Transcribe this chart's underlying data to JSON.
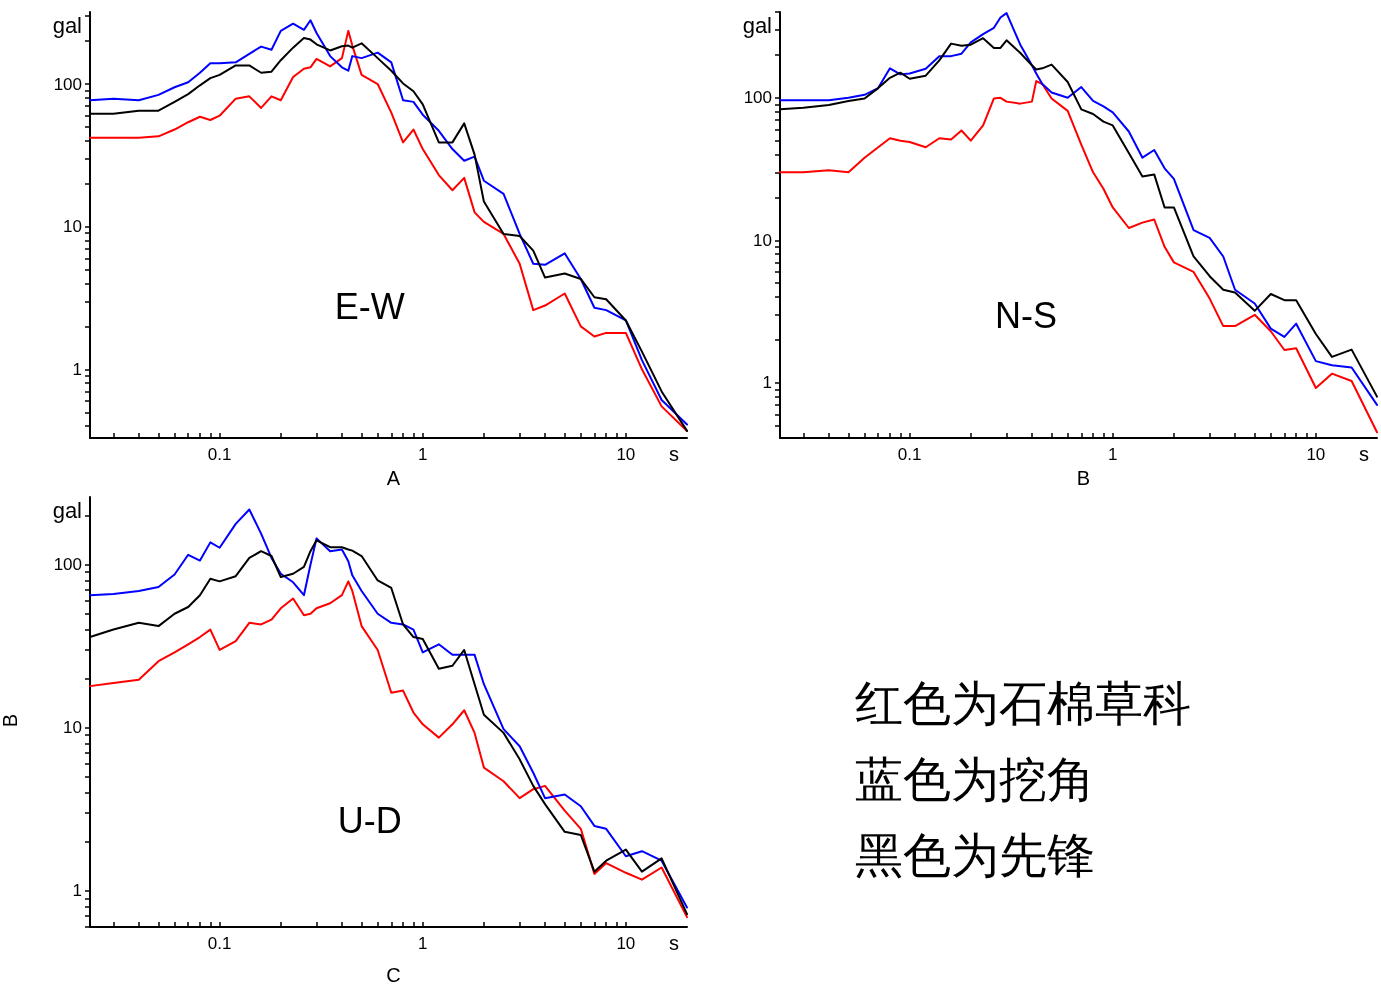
{
  "chart_data": [
    {
      "type": "line",
      "title": "A",
      "xlabel": "s",
      "ylabel": "gal",
      "annotations": [
        "E-W"
      ],
      "log": "xy",
      "grid": false,
      "marker": "none",
      "line_style": "solid",
      "xlim": [
        0.023,
        20
      ],
      "ylim": [
        0.33,
        320
      ],
      "xticks": [
        {
          "value": 0.03,
          "label": null
        },
        {
          "value": 0.04,
          "label": null
        },
        {
          "value": 0.05,
          "label": null
        },
        {
          "value": 0.06,
          "label": null
        },
        {
          "value": 0.07,
          "label": null
        },
        {
          "value": 0.08,
          "label": null
        },
        {
          "value": 0.09,
          "label": null
        },
        0.1,
        {
          "value": 0.2,
          "label": null
        },
        {
          "value": 0.3,
          "label": null
        },
        {
          "value": 0.4,
          "label": null
        },
        {
          "value": 0.5,
          "label": null
        },
        {
          "value": 0.6,
          "label": null
        },
        {
          "value": 0.7,
          "label": null
        },
        {
          "value": 0.8,
          "label": null
        },
        {
          "value": 0.9,
          "label": null
        },
        1,
        {
          "value": 2,
          "label": null
        },
        {
          "value": 3,
          "label": null
        },
        {
          "value": 4,
          "label": null
        },
        {
          "value": 5,
          "label": null
        },
        {
          "value": 6,
          "label": null
        },
        {
          "value": 7,
          "label": null
        },
        {
          "value": 8,
          "label": null
        },
        {
          "value": 9,
          "label": null
        },
        10
      ],
      "yticks": [
        {
          "value": 0.4,
          "label": null
        },
        {
          "value": 0.5,
          "label": null
        },
        {
          "value": 0.6,
          "label": null
        },
        {
          "value": 0.7,
          "label": null
        },
        {
          "value": 0.8,
          "label": null
        },
        {
          "value": 0.9,
          "label": null
        },
        1,
        {
          "value": 2,
          "label": null
        },
        {
          "value": 3,
          "label": null
        },
        {
          "value": 4,
          "label": null
        },
        {
          "value": 5,
          "label": null
        },
        {
          "value": 6,
          "label": null
        },
        {
          "value": 7,
          "label": null
        },
        {
          "value": 8,
          "label": null
        },
        {
          "value": 9,
          "label": null
        },
        10,
        {
          "value": 20,
          "label": null
        },
        {
          "value": 30,
          "label": null
        },
        {
          "value": 40,
          "label": null
        },
        {
          "value": 50,
          "label": null
        },
        {
          "value": 60,
          "label": null
        },
        {
          "value": 70,
          "label": null
        },
        {
          "value": 80,
          "label": null
        },
        {
          "value": 90,
          "label": null
        },
        100,
        {
          "value": 200,
          "label": null
        },
        {
          "value": 300,
          "label": null
        }
      ],
      "x": [
        0.023,
        0.03,
        0.04,
        0.05,
        0.06,
        0.07,
        0.08,
        0.09,
        0.1,
        0.12,
        0.14,
        0.16,
        0.18,
        0.2,
        0.23,
        0.26,
        0.28,
        0.3,
        0.35,
        0.4,
        0.43,
        0.45,
        0.5,
        0.6,
        0.7,
        0.8,
        0.9,
        1,
        1.2,
        1.4,
        1.6,
        1.8,
        2,
        2.5,
        3,
        3.5,
        4,
        5,
        6,
        7,
        8,
        10,
        12,
        15,
        20
      ],
      "series": [
        {
          "color": "#ff0000",
          "values": [
            42,
            42,
            42,
            43,
            48,
            54,
            59,
            56,
            60,
            79,
            82,
            68,
            82,
            77,
            112,
            128,
            131,
            150,
            133,
            152,
            236,
            186,
            116,
            100,
            63,
            39,
            48,
            35,
            23,
            18,
            22,
            12.6,
            10.8,
            8.9,
            5.5,
            2.6,
            2.8,
            3.4,
            2.0,
            1.7,
            1.8,
            1.8,
            1.0,
            0.55,
            0.37
          ]
        },
        {
          "color": "#0000ff",
          "values": [
            77,
            79,
            77,
            84,
            95,
            103,
            120,
            140,
            140,
            142,
            163,
            183,
            174,
            236,
            265,
            240,
            280,
            228,
            157,
            131,
            124,
            157,
            152,
            166,
            142,
            77,
            75,
            61,
            47,
            35,
            29,
            31,
            21,
            17,
            8.9,
            5.5,
            5.4,
            6.5,
            4.3,
            2.7,
            2.6,
            2.2,
            1.16,
            0.61,
            0.41
          ]
        },
        {
          "color": "#000000",
          "values": [
            62,
            62,
            65,
            65,
            75,
            85,
            98,
            110,
            116,
            135,
            135,
            120,
            122,
            147,
            180,
            210,
            205,
            190,
            172,
            184,
            186,
            180,
            193,
            152,
            124,
            101,
            89,
            72,
            39,
            39,
            53,
            32,
            15,
            8.9,
            8.6,
            6.8,
            4.4,
            4.7,
            4.3,
            3.2,
            3.1,
            2.2,
            1.33,
            0.7,
            0.37
          ]
        }
      ]
    },
    {
      "type": "line",
      "title": "B",
      "xlabel": "s",
      "ylabel": "gal",
      "annotations": [
        "N-S"
      ],
      "log": "xy",
      "grid": false,
      "marker": "none",
      "line_style": "solid",
      "xlim": [
        0.023,
        20
      ],
      "ylim": [
        0.41,
        400
      ],
      "xticks": [
        {
          "value": 0.03,
          "label": null
        },
        {
          "value": 0.04,
          "label": null
        },
        {
          "value": 0.05,
          "label": null
        },
        {
          "value": 0.06,
          "label": null
        },
        {
          "value": 0.07,
          "label": null
        },
        {
          "value": 0.08,
          "label": null
        },
        {
          "value": 0.09,
          "label": null
        },
        0.1,
        {
          "value": 0.2,
          "label": null
        },
        {
          "value": 0.3,
          "label": null
        },
        {
          "value": 0.4,
          "label": null
        },
        {
          "value": 0.5,
          "label": null
        },
        {
          "value": 0.6,
          "label": null
        },
        {
          "value": 0.7,
          "label": null
        },
        {
          "value": 0.8,
          "label": null
        },
        {
          "value": 0.9,
          "label": null
        },
        1,
        {
          "value": 2,
          "label": null
        },
        {
          "value": 3,
          "label": null
        },
        {
          "value": 4,
          "label": null
        },
        {
          "value": 5,
          "label": null
        },
        {
          "value": 6,
          "label": null
        },
        {
          "value": 7,
          "label": null
        },
        {
          "value": 8,
          "label": null
        },
        {
          "value": 9,
          "label": null
        },
        10
      ],
      "yticks": [
        {
          "value": 0.5,
          "label": null
        },
        {
          "value": 0.6,
          "label": null
        },
        {
          "value": 0.7,
          "label": null
        },
        {
          "value": 0.8,
          "label": null
        },
        {
          "value": 0.9,
          "label": null
        },
        1,
        {
          "value": 2,
          "label": null
        },
        {
          "value": 3,
          "label": null
        },
        {
          "value": 4,
          "label": null
        },
        {
          "value": 5,
          "label": null
        },
        {
          "value": 6,
          "label": null
        },
        {
          "value": 7,
          "label": null
        },
        {
          "value": 8,
          "label": null
        },
        {
          "value": 9,
          "label": null
        },
        10,
        {
          "value": 20,
          "label": null
        },
        {
          "value": 30,
          "label": null
        },
        {
          "value": 40,
          "label": null
        },
        {
          "value": 50,
          "label": null
        },
        {
          "value": 60,
          "label": null
        },
        {
          "value": 70,
          "label": null
        },
        {
          "value": 80,
          "label": null
        },
        {
          "value": 90,
          "label": null
        },
        100,
        {
          "value": 200,
          "label": null
        },
        {
          "value": 300,
          "label": null
        },
        {
          "value": 400,
          "label": null
        }
      ],
      "x": [
        0.023,
        0.03,
        0.04,
        0.05,
        0.06,
        0.07,
        0.08,
        0.09,
        0.1,
        0.12,
        0.14,
        0.16,
        0.18,
        0.2,
        0.23,
        0.26,
        0.28,
        0.3,
        0.35,
        0.4,
        0.42,
        0.45,
        0.5,
        0.6,
        0.7,
        0.8,
        0.9,
        1,
        1.2,
        1.4,
        1.6,
        1.8,
        2,
        2.5,
        3,
        3.5,
        4,
        5,
        6,
        7,
        8,
        10,
        12,
        15,
        20
      ],
      "series": [
        {
          "color": "#ff0000",
          "values": [
            30,
            30,
            31,
            30,
            38,
            45,
            52,
            50,
            49,
            45,
            52,
            51,
            59,
            50,
            64,
            99,
            100,
            94,
            91,
            94,
            131,
            125,
            99,
            81,
            47,
            30,
            23,
            17,
            12.2,
            13.3,
            14,
            9,
            7,
            6,
            3.9,
            2.5,
            2.5,
            3.0,
            2.3,
            1.7,
            1.75,
            0.92,
            1.16,
            1.03,
            0.45
          ]
        },
        {
          "color": "#0000ff",
          "values": [
            96,
            96,
            96,
            100,
            105,
            117,
            161,
            146,
            148,
            160,
            196,
            196,
            204,
            245,
            280,
            310,
            366,
            393,
            237,
            169,
            148,
            125,
            109,
            100,
            119,
            95,
            87,
            79,
            58,
            38,
            43,
            32,
            27,
            11.8,
            10.4,
            7.7,
            4.5,
            3.6,
            2.4,
            2.1,
            2.6,
            1.42,
            1.33,
            1.28,
            0.7
          ]
        },
        {
          "color": "#000000",
          "values": [
            83,
            85,
            89,
            95,
            99,
            117,
            138,
            150,
            136,
            143,
            183,
            240,
            232,
            236,
            262,
            224,
            224,
            253,
            207,
            169,
            158,
            161,
            171,
            129,
            83,
            77,
            68,
            64,
            41,
            28,
            29,
            17,
            17,
            7.7,
            5.6,
            4.5,
            4.3,
            3.2,
            4.2,
            3.8,
            3.8,
            2.2,
            1.52,
            1.71,
            0.8
          ]
        }
      ]
    },
    {
      "type": "line",
      "title": "C",
      "xlabel": "s",
      "ylabel": "gal",
      "annotations": [
        "U-D",
        "B"
      ],
      "log": "xy",
      "grid": false,
      "marker": "none",
      "line_style": "solid",
      "xlim": [
        0.023,
        20
      ],
      "ylim": [
        0.6,
        260
      ],
      "xticks": [
        {
          "value": 0.03,
          "label": null
        },
        {
          "value": 0.04,
          "label": null
        },
        {
          "value": 0.05,
          "label": null
        },
        {
          "value": 0.06,
          "label": null
        },
        {
          "value": 0.07,
          "label": null
        },
        {
          "value": 0.08,
          "label": null
        },
        {
          "value": 0.09,
          "label": null
        },
        0.1,
        {
          "value": 0.2,
          "label": null
        },
        {
          "value": 0.3,
          "label": null
        },
        {
          "value": 0.4,
          "label": null
        },
        {
          "value": 0.5,
          "label": null
        },
        {
          "value": 0.6,
          "label": null
        },
        {
          "value": 0.7,
          "label": null
        },
        {
          "value": 0.8,
          "label": null
        },
        {
          "value": 0.9,
          "label": null
        },
        1,
        {
          "value": 2,
          "label": null
        },
        {
          "value": 3,
          "label": null
        },
        {
          "value": 4,
          "label": null
        },
        {
          "value": 5,
          "label": null
        },
        {
          "value": 6,
          "label": null
        },
        {
          "value": 7,
          "label": null
        },
        {
          "value": 8,
          "label": null
        },
        {
          "value": 9,
          "label": null
        },
        10
      ],
      "yticks": [
        {
          "value": 0.6,
          "label": null
        },
        {
          "value": 0.7,
          "label": null
        },
        {
          "value": 0.8,
          "label": null
        },
        {
          "value": 0.9,
          "label": null
        },
        1,
        {
          "value": 2,
          "label": null
        },
        {
          "value": 3,
          "label": null
        },
        {
          "value": 4,
          "label": null
        },
        {
          "value": 5,
          "label": null
        },
        {
          "value": 6,
          "label": null
        },
        {
          "value": 7,
          "label": null
        },
        {
          "value": 8,
          "label": null
        },
        {
          "value": 9,
          "label": null
        },
        10,
        {
          "value": 20,
          "label": null
        },
        {
          "value": 30,
          "label": null
        },
        {
          "value": 40,
          "label": null
        },
        {
          "value": 50,
          "label": null
        },
        {
          "value": 60,
          "label": null
        },
        {
          "value": 70,
          "label": null
        },
        {
          "value": 80,
          "label": null
        },
        {
          "value": 90,
          "label": null
        },
        100,
        {
          "value": 200,
          "label": null
        }
      ],
      "x": [
        0.023,
        0.03,
        0.04,
        0.05,
        0.06,
        0.07,
        0.08,
        0.09,
        0.1,
        0.12,
        0.14,
        0.16,
        0.18,
        0.2,
        0.23,
        0.26,
        0.28,
        0.3,
        0.35,
        0.4,
        0.43,
        0.45,
        0.5,
        0.6,
        0.7,
        0.8,
        0.9,
        1,
        1.2,
        1.4,
        1.6,
        1.8,
        2,
        2.5,
        3,
        3.5,
        4,
        5,
        6,
        7,
        8,
        10,
        12,
        15,
        20
      ],
      "series": [
        {
          "color": "#ff0000",
          "values": [
            18,
            18.8,
            19.7,
            25.6,
            29,
            32.5,
            36,
            40,
            30,
            34,
            44,
            43,
            46,
            54,
            62,
            49,
            50,
            54,
            58,
            65,
            79,
            69,
            42,
            30,
            16.4,
            16.9,
            12.4,
            10.5,
            8.7,
            10.5,
            12.8,
            9.3,
            5.7,
            4.7,
            3.7,
            4.2,
            4.4,
            3.1,
            2.4,
            1.27,
            1.48,
            1.29,
            1.17,
            1.39,
            0.69
          ]
        },
        {
          "color": "#0000ff",
          "values": [
            65,
            66,
            69,
            73,
            87,
            115,
            106,
            137,
            127,
            178,
            218,
            155,
            110,
            88,
            78,
            65,
            100,
            145,
            121,
            124,
            105,
            86,
            69,
            50,
            44,
            43,
            40,
            29,
            32.5,
            28,
            28,
            28,
            18.5,
            9.8,
            7.7,
            5.3,
            3.7,
            3.9,
            3.3,
            2.5,
            2.4,
            1.63,
            1.75,
            1.53,
            0.79
          ]
        },
        {
          "color": "#000000",
          "values": [
            36,
            40,
            44,
            42,
            50,
            55,
            65,
            82,
            79,
            85,
            110,
            121,
            113,
            84,
            88,
            97,
            121,
            141,
            128,
            128,
            124,
            122,
            113,
            80,
            72,
            43,
            36,
            35,
            23,
            24,
            30,
            18.5,
            12,
            9.3,
            6.4,
            4.4,
            3.4,
            2.3,
            2.2,
            1.31,
            1.53,
            1.79,
            1.31,
            1.58,
            0.72
          ]
        }
      ]
    },
    {
      "type": "other",
      "annotations": [
        "红色为石棉草科",
        "蓝色为挖角",
        "黑色为先锋"
      ]
    }
  ]
}
